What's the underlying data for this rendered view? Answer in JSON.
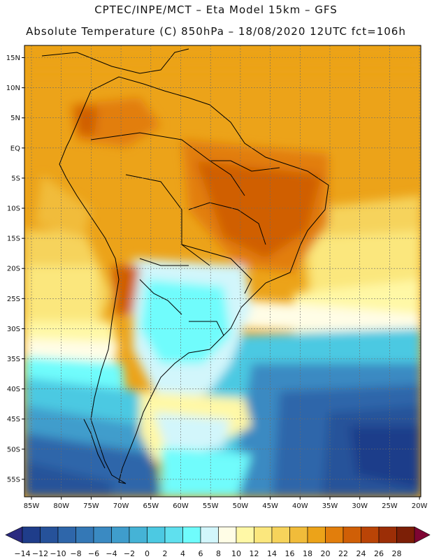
{
  "title": {
    "line1": "CPTEC/INPE/MCT –  Eta Model 15km – GFS",
    "line2": "Absolute Temperature (C) 850hPa – 18/08/2020 12UTC fct=106h"
  },
  "map": {
    "lat_labels": [
      "15N",
      "10N",
      "5N",
      "EQ",
      "5S",
      "10S",
      "15S",
      "20S",
      "25S",
      "30S",
      "35S",
      "40S",
      "45S",
      "50S",
      "55S"
    ],
    "lon_labels": [
      "85W",
      "80W",
      "75W",
      "70W",
      "65W",
      "60W",
      "55W",
      "50W",
      "45W",
      "40W",
      "35W",
      "30W",
      "25W",
      "20W"
    ]
  },
  "colorbar": {
    "labels": [
      "-14",
      "-12",
      "-10",
      "-8",
      "-6",
      "-4",
      "-2",
      "0",
      "2",
      "4",
      "6",
      "8",
      "10",
      "12",
      "14",
      "16",
      "18",
      "20",
      "22",
      "24",
      "26",
      "28"
    ],
    "colors": [
      "#1f3d8a",
      "#26529a",
      "#2e66aa",
      "#3478b6",
      "#3a8ac2",
      "#3f9dcc",
      "#45b3d6",
      "#4cc9e2",
      "#5fe0ee",
      "#6ffcfc",
      "#d2f6fb",
      "#fffde6",
      "#fff8a6",
      "#fbe77d",
      "#f6d35b",
      "#f1bc3a",
      "#eca319",
      "#e27e0c",
      "#d05f06",
      "#ba4406",
      "#9c2e06",
      "#7c1f06"
    ],
    "under_color": "#2a2a80",
    "over_color": "#7e0533"
  },
  "colors": {
    "frame": "#000000",
    "grid": "#6a6a6a",
    "coast": "#000000"
  }
}
